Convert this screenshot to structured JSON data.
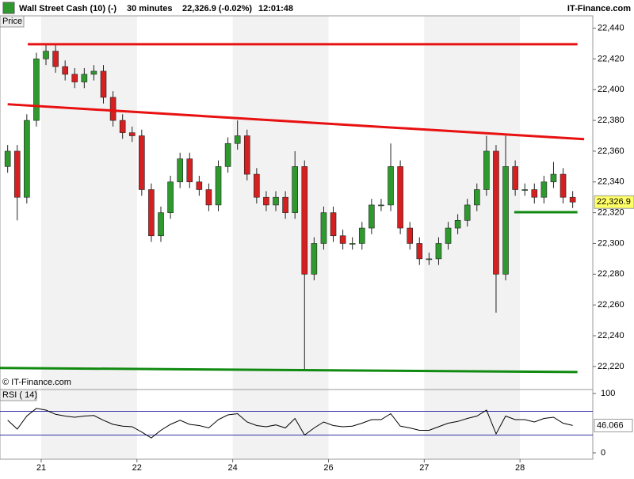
{
  "header": {
    "symbol": "Wall Street Cash (10) (-)",
    "interval": "30 minutes",
    "quote": "22,326.9 (-0.02%)",
    "time": "12:01:48",
    "brand": "IT-Finance.com"
  },
  "chart_data": [
    {
      "type": "candlestick",
      "title": "Price",
      "annotation": "© IT-Finance.com",
      "x": [
        -0.35,
        -0.25,
        -0.15,
        -0.05,
        0.05,
        0.15,
        0.25,
        0.35,
        0.45,
        0.55,
        0.65,
        0.75,
        0.85,
        0.95,
        1.05,
        1.15,
        1.25,
        1.35,
        1.45,
        1.55,
        1.65,
        1.75,
        1.85,
        1.95,
        2.05,
        2.15,
        2.25,
        2.35,
        2.45,
        2.55,
        2.65,
        2.75,
        2.85,
        2.95,
        3.05,
        3.15,
        3.25,
        3.35,
        3.45,
        3.55,
        3.65,
        3.75,
        3.85,
        3.95,
        4.05,
        4.15,
        4.25,
        4.35,
        4.45,
        4.55,
        4.65,
        4.75,
        4.85,
        4.95,
        5.05,
        5.15,
        5.25,
        5.35,
        5.45,
        5.55
      ],
      "open": [
        22350,
        22360,
        22330,
        22380,
        22420,
        22425,
        22415,
        22410,
        22405,
        22410,
        22412,
        22395,
        22380,
        22372,
        22370,
        22335,
        22305,
        22320,
        22340,
        22355,
        22340,
        22335,
        22325,
        22350,
        22365,
        22370,
        22345,
        22330,
        22325,
        22330,
        22320,
        22350,
        22280,
        22300,
        22320,
        22305,
        22300,
        22300,
        22310,
        22325,
        22325,
        22350,
        22310,
        22300,
        22290,
        22290,
        22300,
        22310,
        22315,
        22325,
        22335,
        22360,
        22280,
        22350,
        22335,
        22335,
        22330,
        22340,
        22345,
        22330
      ],
      "high": [
        22364,
        22364,
        22384,
        22424,
        22430,
        22429,
        22419,
        22414,
        22414,
        22416,
        22416,
        22399,
        22384,
        22376,
        22374,
        22339,
        22324,
        22344,
        22359,
        22359,
        22344,
        22339,
        22354,
        22369,
        22380,
        22374,
        22349,
        22334,
        22334,
        22334,
        22360,
        22354,
        22304,
        22324,
        22324,
        22309,
        22304,
        22314,
        22329,
        22329,
        22365,
        22354,
        22314,
        22304,
        22294,
        22304,
        22314,
        22319,
        22329,
        22339,
        22370,
        22364,
        22370,
        22354,
        22339,
        22339,
        22344,
        22353,
        22349,
        22334
      ],
      "low": [
        22346,
        22315,
        22326,
        22376,
        22416,
        22411,
        22406,
        22401,
        22401,
        22406,
        22391,
        22376,
        22368,
        22366,
        22331,
        22301,
        22301,
        22316,
        22336,
        22336,
        22331,
        22321,
        22321,
        22346,
        22361,
        22341,
        22326,
        22321,
        22321,
        22316,
        22316,
        22218,
        22276,
        22296,
        22301,
        22296,
        22296,
        22296,
        22306,
        22321,
        22321,
        22306,
        22296,
        22286,
        22286,
        22286,
        22296,
        22306,
        22311,
        22321,
        22331,
        22255,
        22276,
        22331,
        22331,
        22326,
        22326,
        22336,
        22326,
        22323
      ],
      "close": [
        22360,
        22330,
        22380,
        22420,
        22425,
        22415,
        22410,
        22405,
        22410,
        22412,
        22395,
        22380,
        22372,
        22370,
        22335,
        22305,
        22320,
        22340,
        22355,
        22340,
        22335,
        22325,
        22350,
        22365,
        22370,
        22345,
        22330,
        22325,
        22330,
        22320,
        22350,
        22280,
        22300,
        22320,
        22305,
        22300,
        22300,
        22310,
        22325,
        22325,
        22350,
        22310,
        22300,
        22290,
        22290,
        22300,
        22310,
        22315,
        22325,
        22335,
        22360,
        22280,
        22350,
        22335,
        22335,
        22330,
        22340,
        22345,
        22330,
        22326.9
      ],
      "up_color": "#2e9a2e",
      "down_color": "#d42020",
      "xlim": [
        -0.43,
        5.76
      ],
      "xticks": [
        {
          "value": 0,
          "label": "21"
        },
        {
          "value": 1,
          "label": "22"
        },
        {
          "value": 2,
          "label": "24"
        },
        {
          "value": 3,
          "label": "26"
        },
        {
          "value": 4,
          "label": "27"
        },
        {
          "value": 5,
          "label": "28"
        }
      ],
      "ylim": [
        22205,
        22448
      ],
      "yticks": [
        {
          "value": 22220,
          "label": "22,220"
        },
        {
          "value": 22240,
          "label": "22,240"
        },
        {
          "value": 22260,
          "label": "22,260"
        },
        {
          "value": 22280,
          "label": "22,280"
        },
        {
          "value": 22300,
          "label": "22,300"
        },
        {
          "value": 22320,
          "label": "22,320"
        },
        {
          "value": 22340,
          "label": "22,340"
        },
        {
          "value": 22360,
          "label": "22,360"
        },
        {
          "value": 22380,
          "label": "22,380"
        },
        {
          "value": 22400,
          "label": "22,400"
        },
        {
          "value": 22420,
          "label": "22,420"
        },
        {
          "value": 22440,
          "label": "22,440"
        }
      ],
      "last": {
        "value": 22326.9,
        "label": "22,326.9"
      },
      "lines": [
        {
          "x": [
            -0.14,
            5.6
          ],
          "y": [
            22429.5,
            22429.5
          ],
          "color": "#e81010"
        },
        {
          "x": [
            -0.35,
            5.67
          ],
          "y": [
            22390.5,
            22367.8
          ],
          "color": "#e81010"
        },
        {
          "x": [
            -0.43,
            5.6
          ],
          "y": [
            22219,
            22216.4
          ],
          "color": "#108a10"
        },
        {
          "x": [
            4.94,
            5.6
          ],
          "y": [
            22320.3,
            22320.3
          ],
          "color": "#108a10"
        }
      ]
    },
    {
      "type": "line",
      "title": "RSI ( 14)",
      "values": [
        55,
        40,
        62,
        75,
        72,
        65,
        62,
        60,
        62,
        63,
        55,
        48,
        45,
        44,
        35,
        25,
        38,
        48,
        55,
        48,
        46,
        42,
        56,
        64,
        66,
        52,
        46,
        44,
        47,
        42,
        58,
        30,
        42,
        52,
        46,
        44,
        45,
        50,
        56,
        56,
        66,
        45,
        42,
        38,
        38,
        44,
        50,
        53,
        58,
        62,
        72,
        32,
        62,
        56,
        56,
        52,
        58,
        60,
        50,
        46.066
      ],
      "color": "#000000",
      "levels": [
        30,
        70
      ],
      "levels_color": "#3333aa",
      "ylim": [
        -10.7,
        106.7
      ],
      "yticks": [
        0,
        100
      ],
      "last": 46.066
    }
  ]
}
